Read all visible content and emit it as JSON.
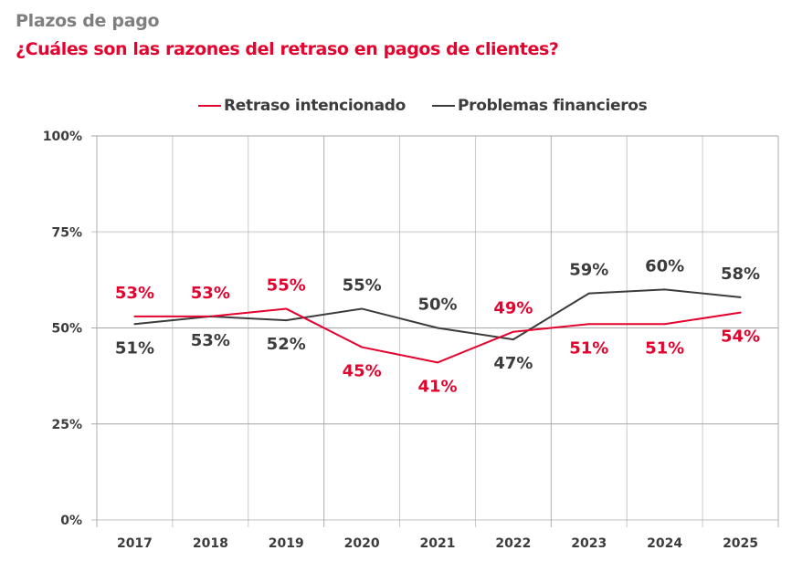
{
  "header": {
    "subtitle": "Plazos de pago",
    "title": "¿Cuáles son las razones del retraso en pagos de clientes?"
  },
  "colors": {
    "accent": "#e4032e",
    "dark": "#3c3c3c",
    "grid": "#a6a6a6",
    "grid_light": "#e0e0e0"
  },
  "chart_data": {
    "type": "line",
    "title": "¿Cuáles son las razones del retraso en pagos de clientes?",
    "subtitle": "Plazos de pago",
    "xlabel": "",
    "ylabel": "",
    "categories": [
      "2017",
      "2018",
      "2019",
      "2020",
      "2021",
      "2022",
      "2023",
      "2024",
      "2025"
    ],
    "ylim": [
      0,
      100
    ],
    "yticks": [
      0,
      25,
      50,
      75,
      100
    ],
    "ytick_labels": [
      "0%",
      "25%",
      "50%",
      "75%",
      "100%"
    ],
    "grid": true,
    "legend_position": "top-center",
    "series": [
      {
        "name": "Retraso intencionado",
        "color": "#e4032e",
        "values": [
          53,
          53,
          55,
          45,
          41,
          49,
          51,
          51,
          54
        ],
        "labels": [
          "53%",
          "53%",
          "55%",
          "45%",
          "41%",
          "49%",
          "51%",
          "51%",
          "54%"
        ],
        "label_side": [
          "above",
          "above",
          "above",
          "below",
          "below",
          "above",
          "below",
          "below",
          "below"
        ]
      },
      {
        "name": "Problemas financieros",
        "color": "#3c3c3c",
        "values": [
          51,
          53,
          52,
          55,
          50,
          47,
          59,
          60,
          58
        ],
        "labels": [
          "51%",
          "53%",
          "52%",
          "55%",
          "50%",
          "47%",
          "59%",
          "60%",
          "58%"
        ],
        "label_side": [
          "below",
          "below",
          "below",
          "above",
          "above",
          "below",
          "above",
          "above",
          "above"
        ]
      }
    ]
  }
}
